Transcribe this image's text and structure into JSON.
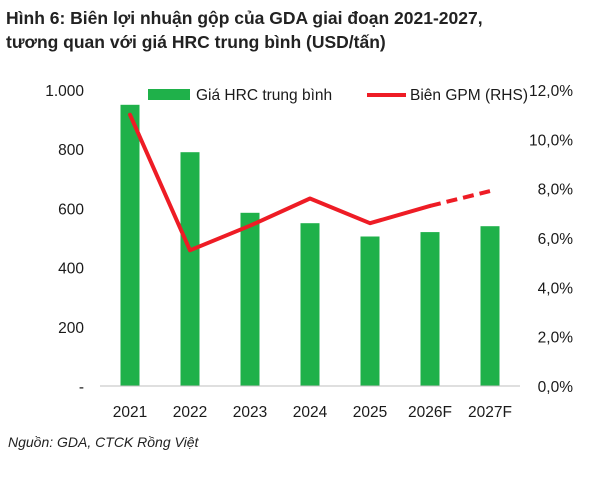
{
  "figure": {
    "title_line1": "Hình 6: Biên lợi nhuận gộp của GDA giai đoạn 2021-2027,",
    "title_line2": "tương quan với giá HRC trung bình (USD/tấn)",
    "source": "Nguồn: GDA, CTCK Rồng Việt"
  },
  "chart_data": {
    "type": "bar",
    "categories": [
      "2021",
      "2022",
      "2023",
      "2024",
      "2025",
      "2026F",
      "2027F"
    ],
    "series": [
      {
        "name": "Giá HRC trung bình",
        "type": "bar",
        "axis": "left",
        "color": "#1fb14a",
        "values": [
          950,
          790,
          585,
          550,
          505,
          520,
          540
        ]
      },
      {
        "name": "Biên GPM (RHS)",
        "type": "line",
        "axis": "right",
        "color": "#ee1c25",
        "values": [
          11.0,
          5.5,
          6.5,
          7.6,
          6.6,
          7.3,
          7.9
        ],
        "dashed_from_index": 5
      }
    ],
    "y_left": {
      "range": [
        0,
        1000
      ],
      "ticks": [
        0,
        200,
        400,
        600,
        800,
        1000
      ],
      "tick_labels": [
        "-",
        "200",
        "400",
        "600",
        "800",
        "1.000"
      ]
    },
    "y_right": {
      "range": [
        0,
        12
      ],
      "ticks": [
        0,
        2,
        4,
        6,
        8,
        10,
        12
      ],
      "tick_labels": [
        "0,0%",
        "2,0%",
        "4,0%",
        "6,0%",
        "8,0%",
        "10,0%",
        "12,0%"
      ]
    },
    "grid": false,
    "legend_position": "top"
  }
}
